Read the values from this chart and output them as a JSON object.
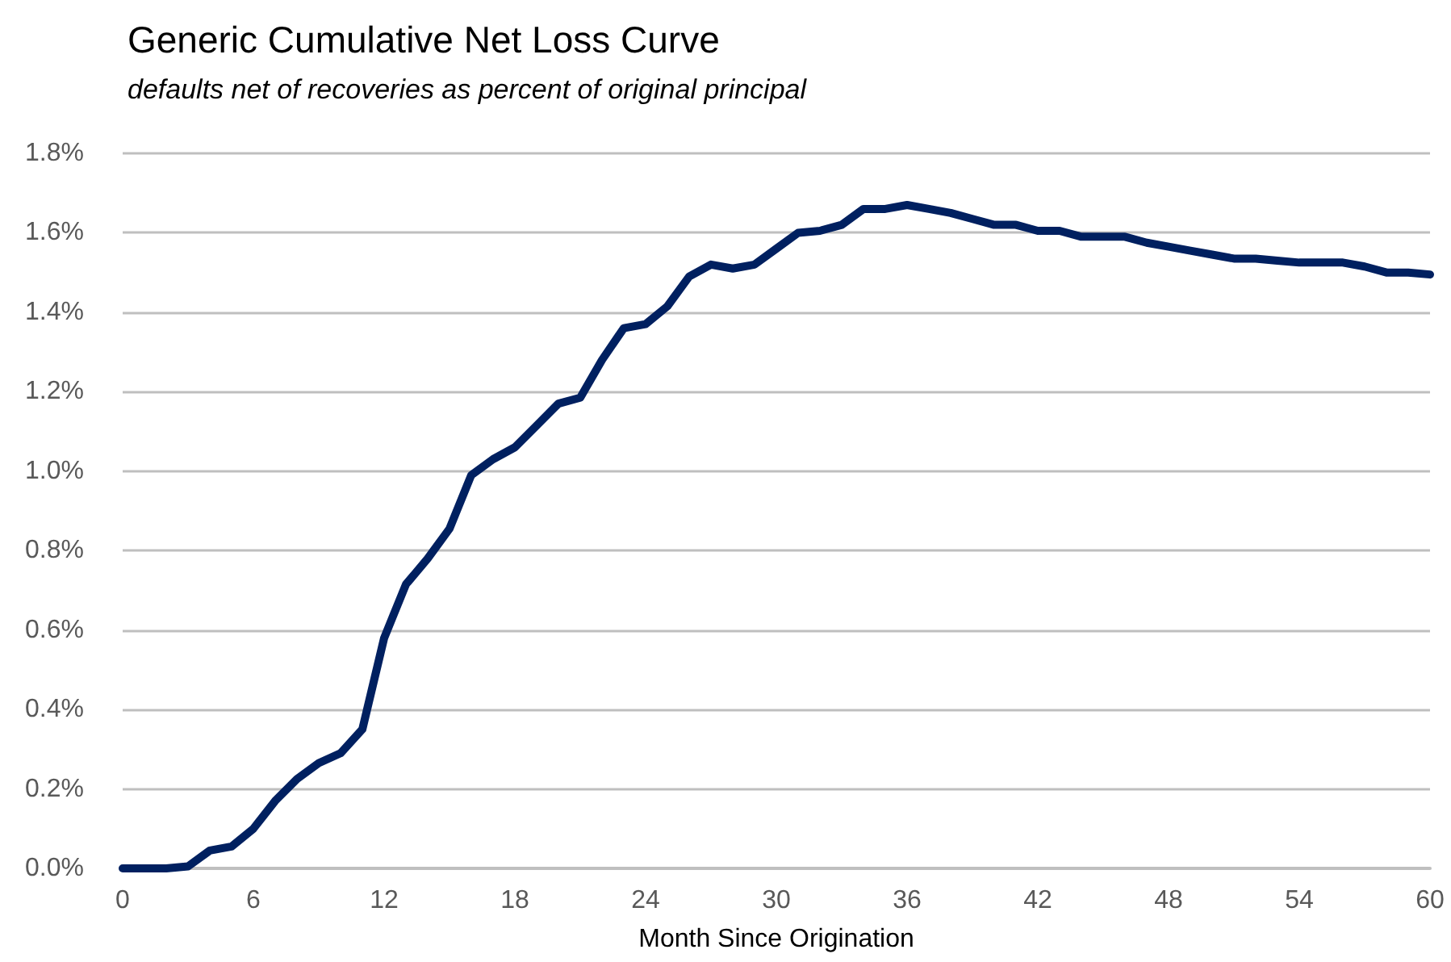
{
  "chart_data": {
    "type": "line",
    "title": "Generic Cumulative Net Loss Curve",
    "subtitle": "defaults net of recoveries as percent of original principal",
    "xlabel": "Month Since Origination",
    "x": [
      0,
      1,
      2,
      3,
      4,
      5,
      6,
      7,
      8,
      9,
      10,
      11,
      12,
      13,
      14,
      15,
      16,
      17,
      18,
      19,
      20,
      21,
      22,
      23,
      24,
      25,
      26,
      27,
      28,
      29,
      30,
      31,
      32,
      33,
      34,
      35,
      36,
      37,
      38,
      39,
      40,
      41,
      42,
      43,
      44,
      45,
      46,
      47,
      48,
      49,
      50,
      51,
      52,
      53,
      54,
      55,
      56,
      57,
      58,
      59,
      60
    ],
    "series": [
      {
        "color": "#002060",
        "values": [
          0,
          0,
          0,
          0.005,
          0.045,
          0.055,
          0.1,
          0.17,
          0.225,
          0.265,
          0.29,
          0.35,
          0.58,
          0.715,
          0.78,
          0.855,
          0.99,
          1.03,
          1.06,
          1.115,
          1.17,
          1.185,
          1.28,
          1.36,
          1.37,
          1.415,
          1.49,
          1.52,
          1.51,
          1.52,
          1.56,
          1.6,
          1.605,
          1.62,
          1.66,
          1.66,
          1.67,
          1.66,
          1.65,
          1.635,
          1.62,
          1.62,
          1.605,
          1.605,
          1.59,
          1.59,
          1.59,
          1.575,
          1.565,
          1.555,
          1.545,
          1.535,
          1.535,
          1.53,
          1.525,
          1.525,
          1.525,
          1.515,
          1.5,
          1.5,
          1.495
        ]
      }
    ],
    "xlim": [
      0,
      60
    ],
    "xticks": [
      0,
      6,
      12,
      18,
      24,
      30,
      36,
      42,
      48,
      54,
      60
    ],
    "ylim": [
      0,
      1.8
    ],
    "yticks": [
      {
        "value": 0,
        "label": "0.0%"
      },
      {
        "value": 0.2,
        "label": "0.2%"
      },
      {
        "value": 0.4,
        "label": "0.4%"
      },
      {
        "value": 0.6,
        "label": "0.6%"
      },
      {
        "value": 0.8,
        "label": "0.8%"
      },
      {
        "value": 1.0,
        "label": "1.0%"
      },
      {
        "value": 1.2,
        "label": "1.2%"
      },
      {
        "value": 1.4,
        "label": "1.4%"
      },
      {
        "value": 1.6,
        "label": "1.6%"
      },
      {
        "value": 1.8,
        "label": "1.8%"
      }
    ],
    "grid": "y",
    "marker": "none",
    "line_style": "solid"
  }
}
